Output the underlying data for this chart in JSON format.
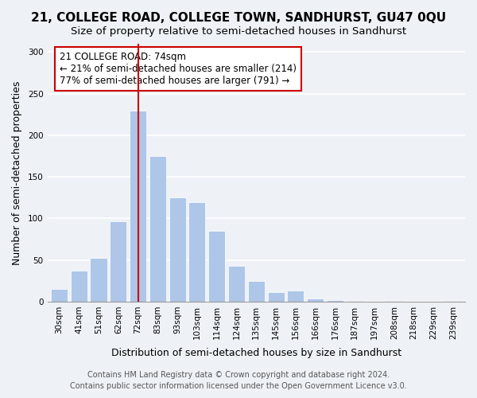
{
  "title": "21, COLLEGE ROAD, COLLEGE TOWN, SANDHURST, GU47 0QU",
  "subtitle": "Size of property relative to semi-detached houses in Sandhurst",
  "xlabel": "Distribution of semi-detached houses by size in Sandhurst",
  "ylabel": "Number of semi-detached properties",
  "bar_labels": [
    "30sqm",
    "41sqm",
    "51sqm",
    "62sqm",
    "72sqm",
    "83sqm",
    "93sqm",
    "103sqm",
    "114sqm",
    "124sqm",
    "135sqm",
    "145sqm",
    "156sqm",
    "166sqm",
    "176sqm",
    "187sqm",
    "197sqm",
    "208sqm",
    "218sqm",
    "229sqm",
    "239sqm"
  ],
  "bar_values": [
    15,
    37,
    53,
    97,
    230,
    175,
    125,
    120,
    85,
    43,
    25,
    11,
    13,
    4,
    2,
    1,
    0,
    1,
    0,
    0,
    1
  ],
  "highlight_bar_index": 4,
  "bar_color": "#aec6e8",
  "highlight_line_color": "#cc0000",
  "annotation_line1": "21 COLLEGE ROAD: 74sqm",
  "annotation_line2": "← 21% of semi-detached houses are smaller (214)",
  "annotation_line3": "77% of semi-detached houses are larger (791) →",
  "ylim": [
    0,
    310
  ],
  "yticks": [
    0,
    50,
    100,
    150,
    200,
    250,
    300
  ],
  "footer1": "Contains HM Land Registry data © Crown copyright and database right 2024.",
  "footer2": "Contains public sector information licensed under the Open Government Licence v3.0.",
  "background_color": "#eef2f7",
  "grid_color": "#ffffff",
  "title_fontsize": 11,
  "subtitle_fontsize": 9.5,
  "axis_label_fontsize": 9,
  "tick_fontsize": 7.5,
  "annotation_fontsize": 8.5,
  "footer_fontsize": 7
}
